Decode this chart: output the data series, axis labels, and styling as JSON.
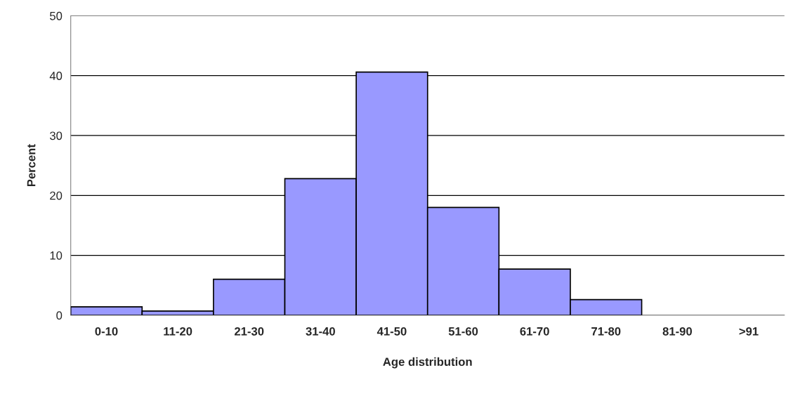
{
  "chart_data": {
    "type": "bar",
    "xlabel": "Age distribution",
    "ylabel": "Percent",
    "categories": [
      "0-10",
      "11-20",
      "21-30",
      "31-40",
      "41-50",
      "51-60",
      "61-70",
      "71-80",
      "81-90",
      ">91"
    ],
    "values": [
      1.4,
      0.7,
      6.0,
      22.8,
      40.6,
      18.0,
      7.7,
      2.6,
      0,
      0
    ],
    "color": "#9999ff",
    "ylim": [
      0,
      50
    ],
    "yticks": [
      0,
      10,
      20,
      30,
      40,
      50
    ],
    "grid": "y",
    "legend": false
  }
}
